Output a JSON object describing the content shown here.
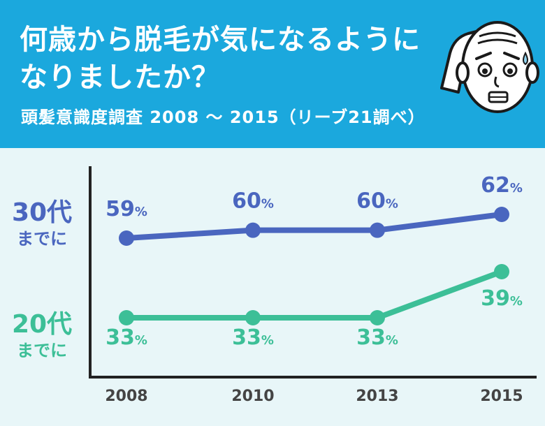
{
  "title": "何歳から脱毛が気になるようになりましたか？",
  "subtitle": "頭髪意識度調査 2008 ～ 2015（リーブ21調べ）",
  "colors": {
    "header_bg": "#1ba8dd",
    "plot_bg": "#e8f6f8",
    "series_30": "#4a66bf",
    "series_20": "#3cbf97"
  },
  "chart_data": {
    "type": "line",
    "categories": [
      "2008",
      "2010",
      "2013",
      "2015"
    ],
    "unit": "%",
    "series": [
      {
        "name": "30代",
        "name_sub": "までに",
        "values": [
          59,
          60,
          60,
          62
        ]
      },
      {
        "name": "20代",
        "name_sub": "までに",
        "values": [
          33,
          33,
          33,
          39
        ]
      }
    ],
    "legend": "left"
  }
}
